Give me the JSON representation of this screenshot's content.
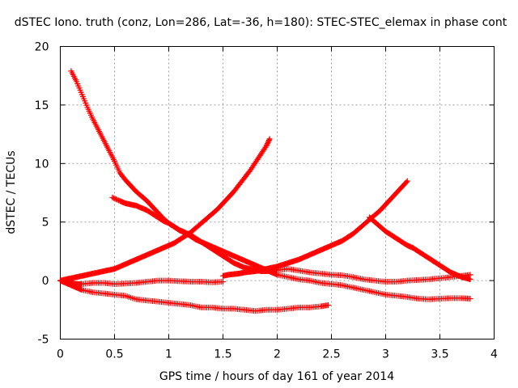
{
  "chart_data": {
    "type": "scatter",
    "title": "dSTEC Iono. truth (conz, Lon=286, Lat=-36, h=180): STEC-STEC_elemax in phase cont",
    "xlabel": "GPS time / hours of day 161 of year 2014",
    "ylabel": "dSTEC  / TECUs",
    "xlim": [
      0,
      4
    ],
    "ylim": [
      -5,
      20
    ],
    "xticks": [
      "0",
      "0.5",
      "1",
      "1.5",
      "2",
      "2.5",
      "3",
      "3.5",
      "4"
    ],
    "yticks": [
      "-5",
      "0",
      "5",
      "10",
      "15",
      "20"
    ],
    "grid": true,
    "marker": "plus",
    "color": "#ff0000",
    "series": [
      {
        "x": [
          0.1,
          0.15,
          0.2,
          0.25,
          0.3,
          0.35,
          0.4,
          0.45,
          0.5,
          0.55,
          0.6,
          0.65,
          0.7,
          0.75,
          0.8,
          0.85,
          0.9,
          0.95,
          1.0,
          1.05,
          1.1,
          1.15,
          1.2,
          1.25,
          1.3,
          1.35,
          1.4,
          1.45,
          1.5,
          1.55,
          1.6,
          1.65,
          1.7,
          1.75,
          1.8,
          1.85,
          1.9,
          1.95,
          2.0,
          2.1,
          2.2,
          2.3,
          2.4,
          2.5,
          2.6,
          2.7,
          2.8,
          2.9,
          3.0,
          3.1,
          3.2,
          3.3,
          3.4,
          3.5,
          3.6,
          3.7,
          3.78
        ],
        "y": [
          17.9,
          17.0,
          15.9,
          14.8,
          13.8,
          12.9,
          12.0,
          11.1,
          10.2,
          9.2,
          8.6,
          8.1,
          7.6,
          7.2,
          6.8,
          6.3,
          5.8,
          5.3,
          4.9,
          4.6,
          4.3,
          4.1,
          3.9,
          3.6,
          3.3,
          3.0,
          2.7,
          2.4,
          2.1,
          1.8,
          1.5,
          1.3,
          1.1,
          1.0,
          0.9,
          0.8,
          0.8,
          0.85,
          0.9,
          1.0,
          0.85,
          0.7,
          0.6,
          0.5,
          0.45,
          0.3,
          0.1,
          0.0,
          -0.1,
          -0.1,
          0.0,
          0.05,
          0.1,
          0.2,
          0.3,
          0.4,
          0.5
        ]
      },
      {
        "x": [
          0.48,
          0.55,
          0.6,
          0.65,
          0.7,
          0.75,
          0.8,
          0.85,
          0.9,
          0.95,
          1.0,
          1.05,
          1.1,
          1.15,
          1.2,
          1.25,
          1.3,
          1.35,
          1.4,
          1.45,
          1.5,
          1.55,
          1.6,
          1.65,
          1.7,
          1.75,
          1.8,
          1.85,
          1.9,
          1.95,
          2.0,
          2.1,
          2.2,
          2.3,
          2.4,
          2.5,
          2.6,
          2.7,
          2.8,
          2.9,
          3.0,
          3.1,
          3.2,
          3.3,
          3.4,
          3.5,
          3.6,
          3.7,
          3.78
        ],
        "y": [
          7.1,
          6.8,
          6.6,
          6.5,
          6.4,
          6.2,
          6.0,
          5.7,
          5.4,
          5.1,
          4.9,
          4.6,
          4.3,
          4.1,
          3.8,
          3.5,
          3.3,
          3.1,
          2.9,
          2.7,
          2.5,
          2.3,
          2.1,
          1.9,
          1.7,
          1.5,
          1.3,
          1.1,
          0.9,
          0.7,
          0.5,
          0.3,
          0.1,
          0.0,
          -0.2,
          -0.3,
          -0.4,
          -0.6,
          -0.8,
          -1.0,
          -1.2,
          -1.3,
          -1.4,
          -1.55,
          -1.6,
          -1.55,
          -1.5,
          -1.5,
          -1.55
        ]
      },
      {
        "x": [
          0.0,
          0.05,
          0.1,
          0.15,
          0.2,
          0.25,
          0.3,
          0.35,
          0.4,
          0.45,
          0.5,
          0.55,
          0.6,
          0.65,
          0.7,
          0.75,
          0.8,
          0.85,
          0.9,
          0.95,
          1.0,
          1.05,
          1.1,
          1.15,
          1.2,
          1.25,
          1.3,
          1.35,
          1.4,
          1.45,
          1.5,
          1.55,
          1.6,
          1.65,
          1.7,
          1.75,
          1.8,
          1.85,
          1.9,
          1.93
        ],
        "y": [
          0.0,
          0.1,
          0.2,
          0.3,
          0.4,
          0.5,
          0.6,
          0.7,
          0.8,
          0.9,
          1.0,
          1.2,
          1.4,
          1.6,
          1.8,
          2.0,
          2.2,
          2.4,
          2.6,
          2.8,
          3.0,
          3.2,
          3.5,
          3.8,
          4.1,
          4.5,
          4.9,
          5.3,
          5.7,
          6.1,
          6.6,
          7.1,
          7.6,
          8.2,
          8.8,
          9.4,
          10.1,
          10.8,
          11.5,
          12.1
        ]
      },
      {
        "x": [
          0.0,
          0.05,
          0.1,
          0.15,
          0.2,
          0.3,
          0.4,
          0.5,
          0.6,
          0.7,
          0.8,
          0.9,
          1.0,
          1.1,
          1.2,
          1.3,
          1.4,
          1.5
        ],
        "y": [
          0.0,
          -0.1,
          -0.2,
          -0.3,
          -0.3,
          -0.2,
          -0.2,
          -0.3,
          -0.25,
          -0.2,
          -0.1,
          0.0,
          0.0,
          -0.05,
          -0.1,
          -0.1,
          -0.15,
          -0.1
        ]
      },
      {
        "x": [
          0.0,
          0.05,
          0.1,
          0.15,
          0.2,
          0.3,
          0.4,
          0.5,
          0.6,
          0.7,
          0.8,
          0.9,
          1.0,
          1.1,
          1.2,
          1.3,
          1.4,
          1.5,
          1.6,
          1.7,
          1.8,
          1.9,
          2.0,
          2.1,
          2.2,
          2.3,
          2.4,
          2.47
        ],
        "y": [
          0.0,
          -0.2,
          -0.4,
          -0.6,
          -0.8,
          -1.0,
          -1.1,
          -1.2,
          -1.3,
          -1.6,
          -1.7,
          -1.8,
          -1.9,
          -2.0,
          -2.1,
          -2.3,
          -2.3,
          -2.4,
          -2.4,
          -2.5,
          -2.6,
          -2.5,
          -2.5,
          -2.4,
          -2.3,
          -2.3,
          -2.2,
          -2.1
        ]
      },
      {
        "x": [
          1.5,
          1.55,
          1.6,
          1.65,
          1.7,
          1.75,
          1.8,
          1.85,
          1.9,
          1.95,
          2.0,
          2.05,
          2.1,
          2.15,
          2.2,
          2.25,
          2.3,
          2.35,
          2.4,
          2.45,
          2.5,
          2.55,
          2.6,
          2.65,
          2.7,
          2.75,
          2.8,
          2.85,
          2.9,
          2.95,
          3.0,
          3.05,
          3.1,
          3.15,
          3.2
        ],
        "y": [
          0.4,
          0.5,
          0.55,
          0.6,
          0.7,
          0.75,
          0.8,
          0.9,
          1.0,
          1.1,
          1.2,
          1.35,
          1.5,
          1.65,
          1.8,
          2.0,
          2.2,
          2.4,
          2.6,
          2.8,
          3.0,
          3.2,
          3.4,
          3.7,
          4.0,
          4.4,
          4.8,
          5.2,
          5.6,
          6.0,
          6.5,
          7.0,
          7.5,
          8.0,
          8.5
        ]
      },
      {
        "x": [
          2.85,
          2.9,
          2.95,
          3.0,
          3.05,
          3.1,
          3.15,
          3.2,
          3.25,
          3.3,
          3.35,
          3.4,
          3.45,
          3.5,
          3.55,
          3.6,
          3.65,
          3.7,
          3.75,
          3.78
        ],
        "y": [
          5.4,
          5.0,
          4.6,
          4.2,
          3.9,
          3.6,
          3.3,
          3.0,
          2.8,
          2.5,
          2.2,
          1.9,
          1.6,
          1.3,
          1.0,
          0.7,
          0.5,
          0.3,
          0.2,
          0.1
        ]
      }
    ]
  }
}
